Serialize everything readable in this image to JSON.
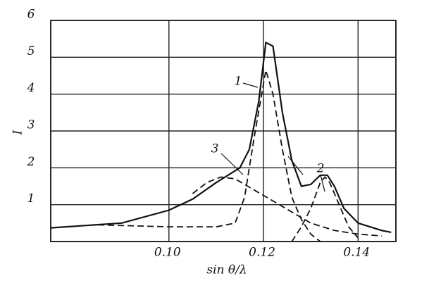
{
  "chart_data": {
    "type": "line",
    "x_label": "sin θ/λ",
    "y_label": "I",
    "xlim": [
      0.075,
      0.148
    ],
    "ylim": [
      0,
      6
    ],
    "xticks": [
      {
        "value": 0.1,
        "label": "0.10"
      },
      {
        "value": 0.12,
        "label": "0.12"
      },
      {
        "value": 0.14,
        "label": "0.14"
      }
    ],
    "yticks": [
      1,
      2,
      3,
      4,
      5,
      6
    ],
    "grid": true,
    "series": [
      {
        "name": "1",
        "color": "#111",
        "style": "solid",
        "x": [
          0.075,
          0.09,
          0.1,
          0.105,
          0.11,
          0.115,
          0.117,
          0.119,
          0.1205,
          0.122,
          0.124,
          0.126,
          0.128,
          0.13,
          0.132,
          0.1335,
          0.135,
          0.137,
          0.14,
          0.145,
          0.147
        ],
        "values": [
          0.37,
          0.5,
          0.85,
          1.15,
          1.6,
          2.0,
          2.5,
          3.8,
          5.4,
          5.3,
          3.5,
          2.2,
          1.5,
          1.55,
          1.8,
          1.8,
          1.5,
          0.9,
          0.5,
          0.3,
          0.25
        ]
      },
      {
        "color": "#111",
        "style": "dashed",
        "x": [
          0.085,
          0.1,
          0.11,
          0.114,
          0.116,
          0.118,
          0.1205,
          0.122,
          0.124,
          0.126,
          0.128,
          0.13,
          0.132
        ],
        "values": [
          0.45,
          0.4,
          0.4,
          0.5,
          1.2,
          2.8,
          4.65,
          4.0,
          2.5,
          1.2,
          0.6,
          0.2,
          0.0
        ]
      },
      {
        "name": "2",
        "color": "#111",
        "style": "dashed",
        "x": [
          0.126,
          0.128,
          0.13,
          0.132,
          0.133,
          0.134,
          0.136,
          0.138,
          0.14
        ],
        "values": [
          0.0,
          0.4,
          0.9,
          1.6,
          1.75,
          1.6,
          1.0,
          0.4,
          0.1
        ]
      },
      {
        "name": "3",
        "color": "#111",
        "style": "dashed",
        "x": [
          0.105,
          0.108,
          0.111,
          0.114,
          0.118,
          0.122,
          0.126,
          0.13,
          0.135,
          0.14,
          0.145
        ],
        "values": [
          1.3,
          1.6,
          1.75,
          1.7,
          1.4,
          1.1,
          0.8,
          0.5,
          0.3,
          0.2,
          0.15
        ]
      }
    ]
  }
}
